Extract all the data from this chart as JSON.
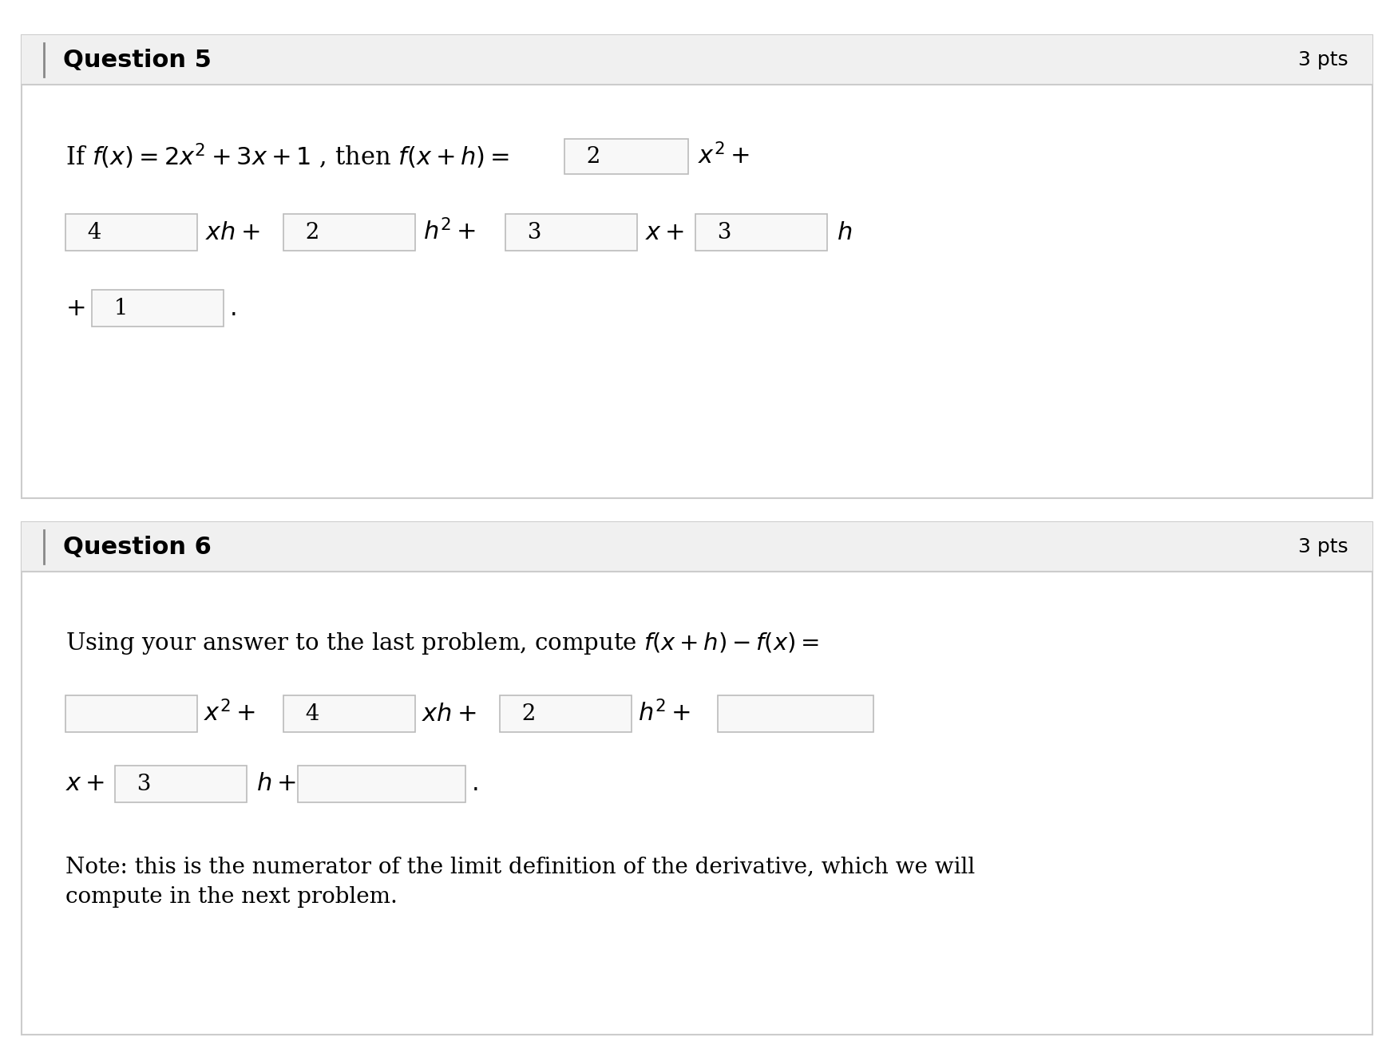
{
  "bg_color": "#ffffff",
  "header_bg": "#f0f0f0",
  "border_color": "#cccccc",
  "text_color": "#000000",
  "box_border": "#bbbbbb",
  "box_fill": "#f8f8f8",
  "q5_title": "Question 5",
  "q5_pts": "3 pts",
  "q6_title": "Question 6",
  "q6_pts": "3 pts",
  "q6_note_line1": "Note: this is the numerator of the limit definition of the derivative, which we will",
  "q6_note_line2": "compute in the next problem."
}
